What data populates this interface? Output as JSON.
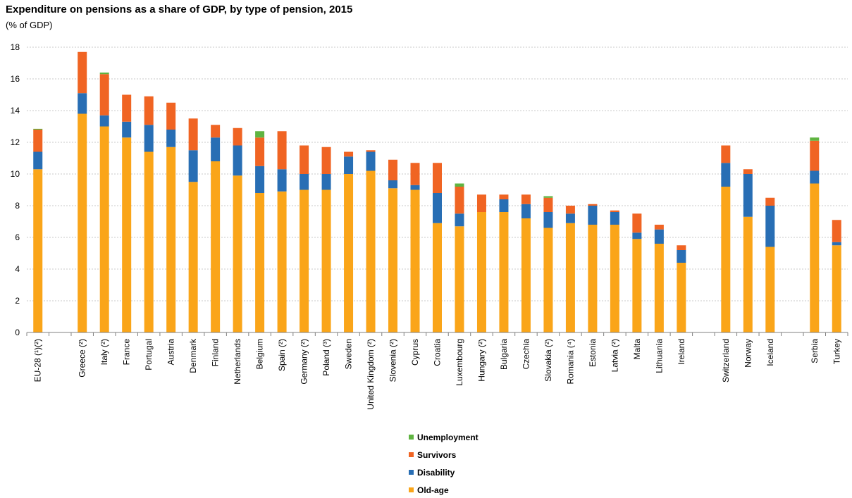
{
  "chart_data": {
    "type": "bar",
    "stacked": true,
    "title": "Expenditure on pensions as a share of GDP, by type of pension, 2015",
    "subtitle": "(% of GDP)",
    "xlabel": "",
    "ylabel": "",
    "ylim": [
      0,
      18
    ],
    "yticks": [
      0,
      2,
      4,
      6,
      8,
      10,
      12,
      14,
      16,
      18
    ],
    "grid": true,
    "legend_position": "bottom",
    "categories": [
      "EU-28 (¹)(²)",
      "",
      "Greece (²)",
      "Italy (²)",
      "France",
      "Portugal",
      "Austria",
      "Denmark",
      "Finland",
      "Netherlands",
      "Belgium",
      "Spain (²)",
      "Germany (²)",
      "Poland (³)",
      "Sweden",
      "United Kingdom (²)",
      "Slovenia (²)",
      "Cyprus",
      "Croatia",
      "Luxembourg",
      "Hungary (²)",
      "Bulgaria",
      "Czechia",
      "Slovakia (²)",
      "Romania (⁴)",
      "Estonia",
      "Latvia (²)",
      "Malta",
      "Lithuania",
      "Ireland",
      "",
      "Switzerland",
      "Norway",
      "Iceland",
      "",
      "Serbia",
      "Turkey"
    ],
    "series": [
      {
        "name": "Old-age",
        "color": "#FAA519",
        "values": [
          10.3,
          null,
          13.8,
          13.0,
          12.3,
          11.4,
          11.7,
          9.5,
          10.8,
          9.9,
          8.8,
          8.9,
          9.0,
          9.0,
          10.0,
          10.2,
          9.1,
          9.0,
          6.9,
          6.7,
          7.6,
          7.6,
          7.2,
          6.6,
          6.9,
          6.8,
          6.8,
          5.9,
          5.6,
          4.4,
          null,
          9.2,
          7.3,
          5.4,
          null,
          9.4,
          5.5
        ]
      },
      {
        "name": "Disability",
        "color": "#286EB4",
        "values": [
          1.1,
          null,
          1.3,
          0.7,
          1.0,
          1.7,
          1.1,
          2.0,
          1.5,
          1.9,
          1.7,
          1.4,
          1.0,
          1.0,
          1.1,
          1.2,
          0.5,
          0.3,
          1.9,
          0.8,
          0.0,
          0.8,
          0.9,
          1.0,
          0.6,
          1.2,
          0.8,
          0.4,
          0.9,
          0.8,
          null,
          1.5,
          2.7,
          2.6,
          null,
          0.8,
          0.2
        ]
      },
      {
        "name": "Survivors",
        "color": "#F06423",
        "values": [
          1.4,
          null,
          2.6,
          2.6,
          1.7,
          1.8,
          1.7,
          2.0,
          0.8,
          1.1,
          1.8,
          2.4,
          1.8,
          1.7,
          0.3,
          0.1,
          1.3,
          1.4,
          1.9,
          1.7,
          1.1,
          0.3,
          0.6,
          0.9,
          0.5,
          0.1,
          0.1,
          1.2,
          0.3,
          0.3,
          null,
          1.1,
          0.3,
          0.5,
          null,
          1.9,
          1.4
        ]
      },
      {
        "name": "Unemployment",
        "color": "#5FB441",
        "values": [
          0.05,
          null,
          0.0,
          0.1,
          0.0,
          0.0,
          0.0,
          0.0,
          0.0,
          0.0,
          0.4,
          0.0,
          0.0,
          0.0,
          0.0,
          0.0,
          0.0,
          0.0,
          0.0,
          0.2,
          0.0,
          0.0,
          0.0,
          0.1,
          0.0,
          0.0,
          0.0,
          0.0,
          0.0,
          0.0,
          null,
          0.0,
          0.0,
          0.0,
          null,
          0.2,
          0.0
        ]
      }
    ],
    "legend_order": [
      "Unemployment",
      "Survivors",
      "Disability",
      "Old-age"
    ],
    "grid_color": "#C8C8C8",
    "axis_color": "#808080"
  }
}
